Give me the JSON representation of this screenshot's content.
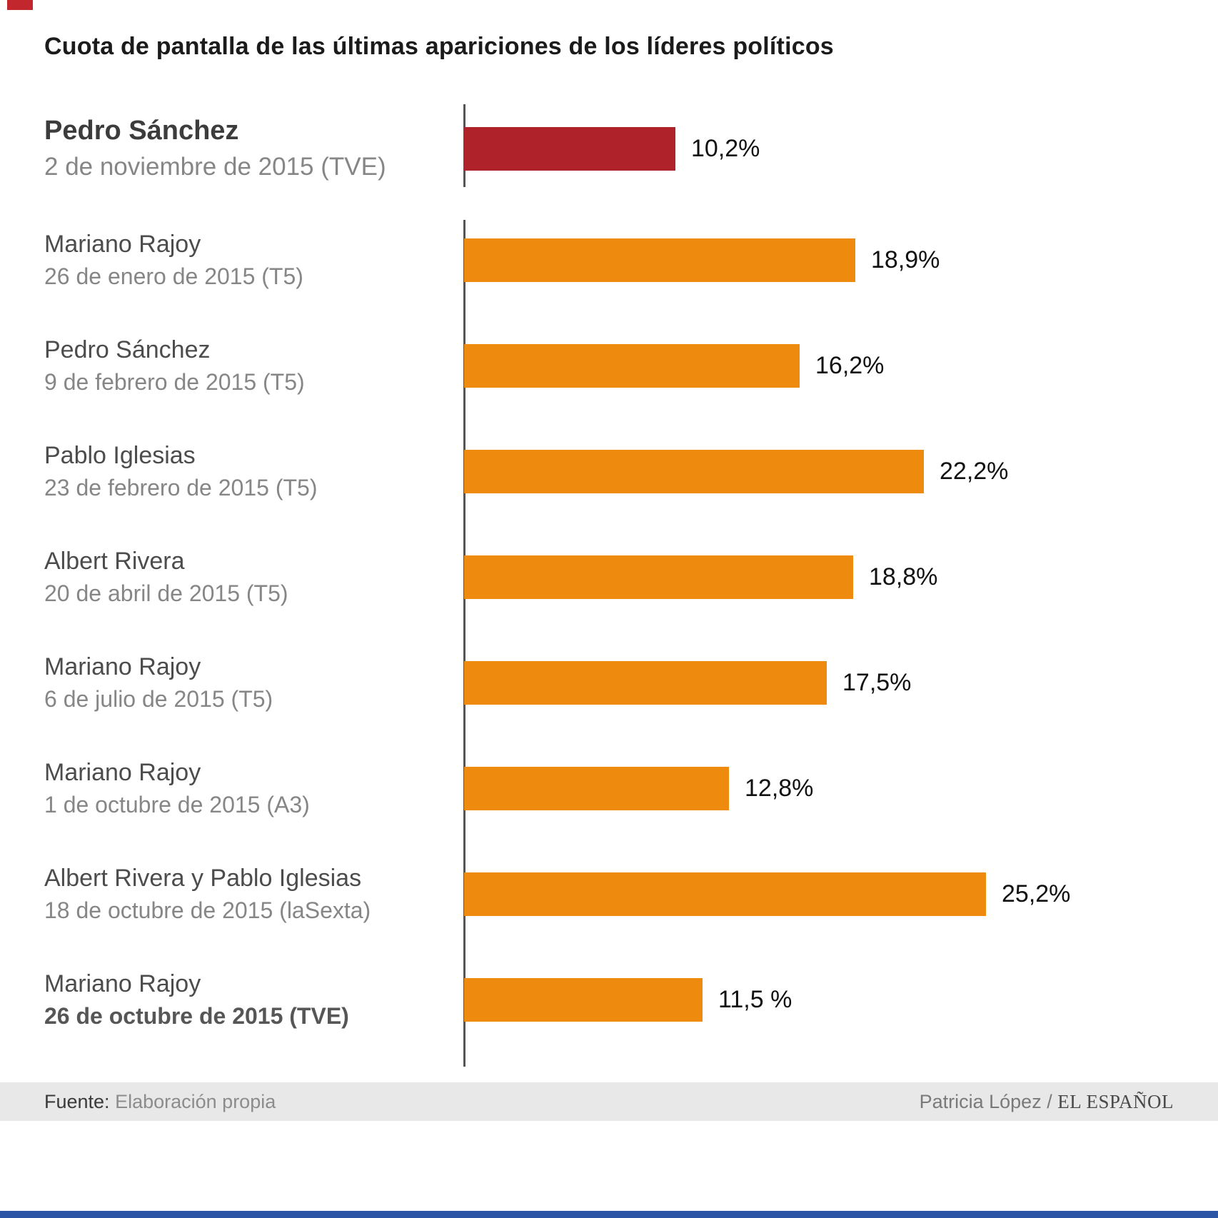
{
  "title": "Cuota de pantalla de las últimas apariciones de los líderes políticos",
  "chart_data": {
    "type": "bar",
    "orientation": "horizontal",
    "title": "Cuota de pantalla de las últimas apariciones de los líderes políticos",
    "xlabel": "",
    "ylabel": "",
    "unit": "%",
    "xlim": [
      0,
      27
    ],
    "grid": false,
    "legend": false,
    "bars": [
      {
        "name": "Pedro Sánchez",
        "date": "2 de noviembre de 2015 (TVE)",
        "value": 10.2,
        "value_label": "10,2%",
        "highlight": true,
        "bold_name": true
      },
      {
        "name": "Mariano Rajoy",
        "date": "26 de enero de 2015 (T5)",
        "value": 18.9,
        "value_label": "18,9%"
      },
      {
        "name": "Pedro Sánchez",
        "date": "9 de febrero de 2015 (T5)",
        "value": 16.2,
        "value_label": "16,2%"
      },
      {
        "name": "Pablo Iglesias",
        "date": "23 de febrero de 2015 (T5)",
        "value": 22.2,
        "value_label": "22,2%"
      },
      {
        "name": "Albert Rivera",
        "date": "20 de abril de 2015 (T5)",
        "value": 18.8,
        "value_label": "18,8%"
      },
      {
        "name": "Mariano Rajoy",
        "date": "6 de julio de 2015 (T5)",
        "value": 17.5,
        "value_label": "17,5%"
      },
      {
        "name": "Mariano Rajoy",
        "date": "1 de octubre de 2015 (A3)",
        "value": 12.8,
        "value_label": "12,8%"
      },
      {
        "name": "Albert Rivera y Pablo Iglesias",
        "date": "18 de octubre de 2015 (laSexta)",
        "value": 25.2,
        "value_label": "25,2%"
      },
      {
        "name": "Mariano Rajoy",
        "date": "26 de octubre de 2015 (TVE)",
        "value": 11.5,
        "value_label": "11,5 %",
        "bold_date": true
      }
    ]
  },
  "colors": {
    "bar": "#ee8a0e",
    "highlight_bar": "#b0222a",
    "axis": "#555555",
    "footer_bg": "#e8e8e8",
    "accent_bottom": "#2d55a5",
    "corner_mark": "#c1272d"
  },
  "footer": {
    "source_label": "Fuente:",
    "source_value": "Elaboración propia",
    "credit_author": "Patricia López /",
    "credit_brand": "EL ESPAÑOL"
  }
}
